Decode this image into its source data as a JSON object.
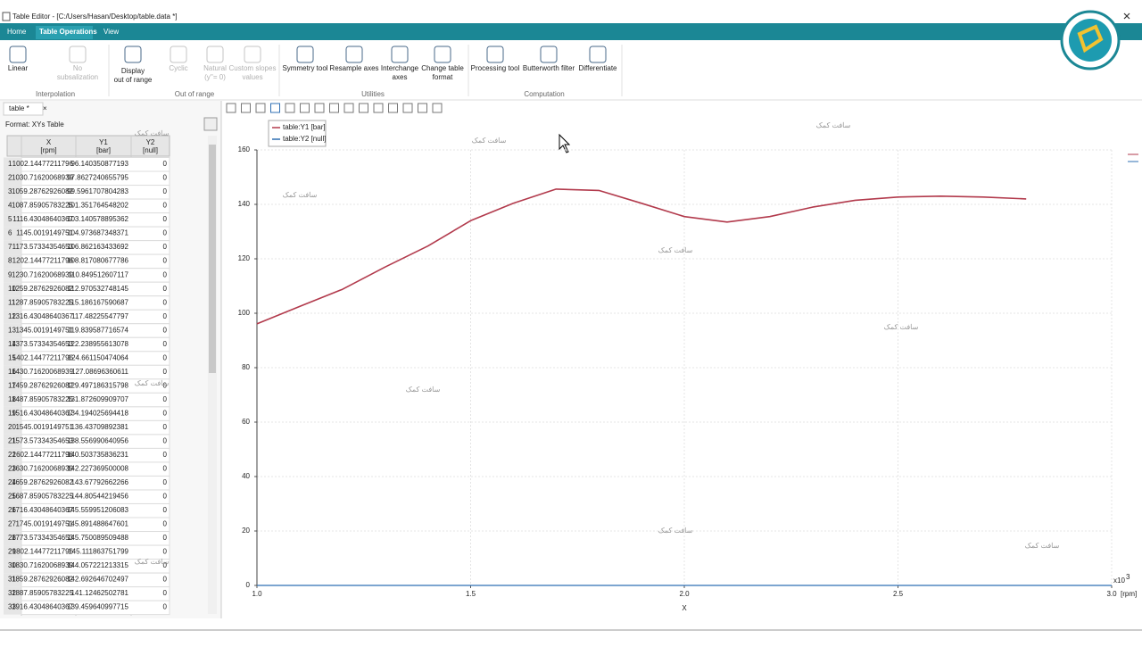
{
  "window": {
    "title": "Table Editor - [C:/Users/Hasan/Desktop/table.data *]"
  },
  "ribbon": {
    "tabs": [
      "Home",
      "Table Operations",
      "View"
    ],
    "groups": [
      {
        "name": "Interpolation",
        "items": [
          [
            "Linear"
          ],
          [
            "No",
            "subsalization"
          ]
        ]
      },
      {
        "name": "Out of range",
        "items": [
          [
            "Display",
            "out of range"
          ],
          [
            "Cyclic"
          ],
          [
            "Natural",
            "(y''= 0)"
          ],
          [
            "Custom slopes",
            "values"
          ]
        ]
      },
      {
        "name": "Utilities",
        "items": [
          [
            "Symmetry tool"
          ],
          [
            "Resample axes"
          ],
          [
            "Interchange",
            "axes"
          ],
          [
            "Change table",
            "format"
          ]
        ]
      },
      {
        "name": "Computation",
        "items": [
          [
            "Processing tool"
          ],
          [
            "Butterworth filter"
          ],
          [
            "Differentiate"
          ]
        ]
      }
    ]
  },
  "table_panel": {
    "tab": "table *",
    "format": "Format: XYs Table",
    "columns": [
      {
        "name": "X",
        "unit": "[rpm]"
      },
      {
        "name": "Y1",
        "unit": "[bar]"
      },
      {
        "name": "Y2",
        "unit": "[null]"
      }
    ],
    "rows": [
      [
        "1",
        "1002.14477211796",
        "96.140350877193",
        "0"
      ],
      [
        "2",
        "1030.71620068939",
        "97.8627240655795",
        "0"
      ],
      [
        "3",
        "1059.28762926082",
        "99.5961707804283",
        "0"
      ],
      [
        "4",
        "1087.85905783225",
        "101.351764548202",
        "0"
      ],
      [
        "5",
        "1116.43048640367",
        "103.140578895362",
        "0"
      ],
      [
        "6",
        "1145.0019149751",
        "104.973687348371",
        "0"
      ],
      [
        "7",
        "1173.57334354653",
        "106.862163433692",
        "0"
      ],
      [
        "8",
        "1202.14477211796",
        "108.817080677786",
        "0"
      ],
      [
        "9",
        "1230.71620068939",
        "110.849512607117",
        "0"
      ],
      [
        "10",
        "1259.28762926082",
        "112.970532748145",
        "0"
      ],
      [
        "11",
        "1287.85905783225",
        "115.186167590687",
        "0"
      ],
      [
        "12",
        "1316.43048640367",
        "117.48225547797",
        "0"
      ],
      [
        "13",
        "1345.0019149751",
        "119.839587716574",
        "0"
      ],
      [
        "14",
        "1373.57334354653",
        "122.238955613078",
        "0"
      ],
      [
        "15",
        "1402.14477211796",
        "124.661150474064",
        "0"
      ],
      [
        "16",
        "1430.71620068939",
        "127.08696360611",
        "0"
      ],
      [
        "17",
        "1459.28762926082",
        "129.497186315798",
        "0"
      ],
      [
        "18",
        "1487.85905783225",
        "131.872609909707",
        "0"
      ],
      [
        "19",
        "1516.43048640367",
        "134.194025694418",
        "0"
      ],
      [
        "20",
        "1545.0019149751",
        "136.43709892381",
        "0"
      ],
      [
        "21",
        "1573.57334354653",
        "138.556990640956",
        "0"
      ],
      [
        "22",
        "1602.14477211796",
        "140.503735836231",
        "0"
      ],
      [
        "23",
        "1630.71620068939",
        "142.227369500008",
        "0"
      ],
      [
        "24",
        "1659.28762926082",
        "143.67792662266",
        "0"
      ],
      [
        "25",
        "1687.85905783225",
        "144.80544219456",
        "0"
      ],
      [
        "26",
        "1716.43048640367",
        "145.559951206083",
        "0"
      ],
      [
        "27",
        "1745.0019149751",
        "145.891488647601",
        "0"
      ],
      [
        "28",
        "1773.57334354653",
        "145.750089509488",
        "0"
      ],
      [
        "29",
        "1802.14477211796",
        "145.111863751799",
        "0"
      ],
      [
        "30",
        "1830.71620068939",
        "144.057221213315",
        "0"
      ],
      [
        "31",
        "1859.28762926082",
        "142.692646702497",
        "0"
      ],
      [
        "32",
        "1887.85905783225",
        "141.12462502781",
        "0"
      ],
      [
        "33",
        "1916.43048640367",
        "139.459640997715",
        "0"
      ]
    ]
  },
  "watermark": "سافت کمک",
  "chart_data": {
    "type": "line",
    "xlabel": "X",
    "x_unit": "[rpm]",
    "x_multiplier": "x10",
    "x_multiplier_exponent": "3",
    "x": [
      1.0,
      1.1,
      1.2,
      1.3,
      1.4,
      1.5,
      1.6,
      1.7,
      1.8,
      1.9,
      2.0,
      2.1,
      2.2,
      2.3,
      2.4,
      2.5,
      2.6,
      2.7,
      2.8,
      2.9,
      3.0
    ],
    "series": [
      {
        "name": "table:Y1 [bar]",
        "color": "#b23a4c",
        "values": [
          96.1,
          102.5,
          108.8,
          117.0,
          124.7,
          134.0,
          140.4,
          145.6,
          145.1,
          140.4,
          135.5,
          133.5,
          135.5,
          139.0,
          141.5,
          142.7,
          143.0,
          142.7,
          142.0,
          null,
          null
        ]
      },
      {
        "name": "table:Y2 [null]",
        "color": "#2f6fb3",
        "values": [
          0,
          0,
          0,
          0,
          0,
          0,
          0,
          0,
          0,
          0,
          0,
          0,
          0,
          0,
          0,
          0,
          0,
          0,
          0,
          0,
          0
        ]
      }
    ],
    "xlim": [
      1.0,
      3.0
    ],
    "xticks": [
      {
        "value": 1.0,
        "label": "1.0"
      },
      {
        "value": 1.5,
        "label": "1.5"
      },
      {
        "value": 2.0,
        "label": "2.0"
      },
      {
        "value": 2.5,
        "label": "2.5"
      },
      {
        "value": 3.0,
        "label": "3.0"
      }
    ],
    "ylim": [
      0,
      160
    ],
    "yticks": [
      0,
      20,
      40,
      60,
      80,
      100,
      120,
      140,
      160
    ],
    "grid": true
  }
}
